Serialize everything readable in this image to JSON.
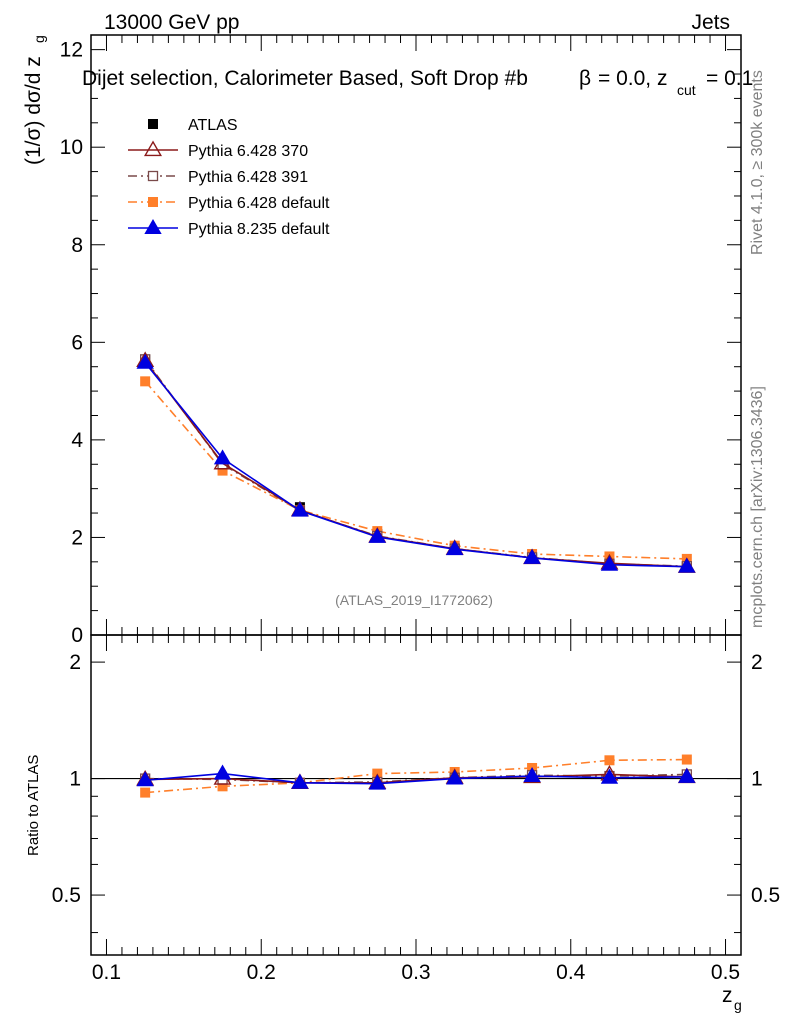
{
  "header": {
    "energy_label": "13000 GeV pp",
    "process_label": "Jets",
    "selection_label": "Dijet selection, Calorimeter Based, Soft Drop #b",
    "param_label_main": "= 0.0, z",
    "param_label_cut": "cut",
    "param_label_value": "= 0.1",
    "beta_symbol": "β"
  },
  "side_labels": {
    "rivet": "Rivet 4.1.0, ≥ 300k events",
    "mcplots": "mcplots.cern.ch [arXiv:1306.3436]"
  },
  "watermark": "(ATLAS_2019_I1772062)",
  "chart_data": [
    {
      "type": "line",
      "panel": "main",
      "ylabel": "(1/σ) dσ/d z",
      "ylabel_sub": "g",
      "xlim": [
        0.09,
        0.51
      ],
      "ylim": [
        0,
        12.3
      ],
      "yticks": [
        0,
        2,
        4,
        6,
        8,
        10,
        12
      ],
      "x": [
        0.125,
        0.175,
        0.225,
        0.275,
        0.325,
        0.375,
        0.425,
        0.475
      ],
      "series": [
        {
          "name": "ATLAS",
          "color": "#000000",
          "marker": "square",
          "line": "none",
          "values": [
            5.65,
            3.52,
            2.62,
            2.07,
            1.76,
            1.56,
            1.44,
            1.39
          ]
        },
        {
          "name": "Pythia 6.428 370",
          "color": "#8b1a1a",
          "marker": "triangle-open",
          "line": "solid",
          "values": [
            5.62,
            3.52,
            2.56,
            2.02,
            1.77,
            1.58,
            1.47,
            1.4
          ]
        },
        {
          "name": "Pythia 6.428 391",
          "color": "#7a4a4a",
          "marker": "square-open",
          "line": "dashdot",
          "values": [
            5.65,
            3.5,
            2.55,
            2.03,
            1.77,
            1.59,
            1.46,
            1.41
          ]
        },
        {
          "name": "Pythia 6.428 default",
          "color": "#ff7f2a",
          "marker": "square",
          "line": "dashdot",
          "values": [
            5.2,
            3.37,
            2.56,
            2.13,
            1.83,
            1.66,
            1.61,
            1.56
          ]
        },
        {
          "name": "Pythia 8.235 default",
          "color": "#0000e0",
          "marker": "triangle",
          "line": "solid",
          "values": [
            5.58,
            3.62,
            2.55,
            2.01,
            1.76,
            1.58,
            1.44,
            1.4
          ]
        }
      ]
    },
    {
      "type": "line",
      "panel": "ratio",
      "ylabel": "Ratio to ATLAS",
      "xlabel": "z",
      "xlabel_sub": "g",
      "xlim": [
        0.09,
        0.51
      ],
      "ylim": [
        0.35,
        2.35
      ],
      "yscale": "log",
      "yticks": [
        0.5,
        1,
        2
      ],
      "xticks": [
        0.1,
        0.2,
        0.3,
        0.4,
        0.5
      ],
      "x": [
        0.125,
        0.175,
        0.225,
        0.275,
        0.325,
        0.375,
        0.425,
        0.475
      ],
      "series": [
        {
          "name": "Pythia 6.428 370",
          "color": "#8b1a1a",
          "marker": "triangle-open",
          "line": "solid",
          "values": [
            0.995,
            1.0,
            0.975,
            0.975,
            1.005,
            1.01,
            1.025,
            1.01
          ]
        },
        {
          "name": "Pythia 6.428 391",
          "color": "#7a4a4a",
          "marker": "square-open",
          "line": "dashdot",
          "values": [
            1.0,
            0.995,
            0.975,
            0.98,
            1.005,
            1.02,
            1.015,
            1.025
          ]
        },
        {
          "name": "Pythia 6.428 default",
          "color": "#ff7f2a",
          "marker": "square",
          "line": "dashdot",
          "values": [
            0.92,
            0.955,
            0.975,
            1.03,
            1.04,
            1.065,
            1.115,
            1.12
          ]
        },
        {
          "name": "Pythia 8.235 default",
          "color": "#0000e0",
          "marker": "triangle",
          "line": "solid",
          "values": [
            0.99,
            1.03,
            0.975,
            0.97,
            1.0,
            1.015,
            1.005,
            1.01
          ]
        }
      ]
    }
  ]
}
